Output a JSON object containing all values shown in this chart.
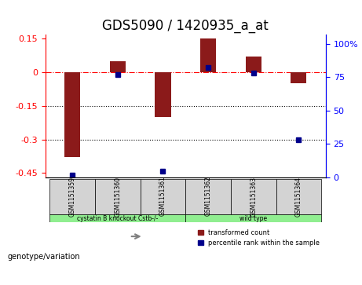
{
  "title": "GDS5090 / 1420935_a_at",
  "samples": [
    "GSM1151359",
    "GSM1151360",
    "GSM1151361",
    "GSM1151362",
    "GSM1151363",
    "GSM1151364"
  ],
  "red_values": [
    -0.38,
    0.05,
    -0.2,
    0.15,
    0.07,
    -0.05
  ],
  "blue_values": [
    2,
    77,
    5,
    82,
    78,
    28
  ],
  "ylim_left": [
    -0.47,
    0.17
  ],
  "ylim_right": [
    0,
    107
  ],
  "yticks_left": [
    0.15,
    0,
    -0.15,
    -0.3,
    -0.45
  ],
  "yticks_right": [
    100,
    75,
    50,
    25,
    0
  ],
  "hlines_dotted": [
    -0.15,
    -0.3
  ],
  "hline_dashdot": 0.0,
  "group1_label": "cystatin B knockout Cstb-/-",
  "group2_label": "wild type",
  "group1_indices": [
    0,
    1,
    2
  ],
  "group2_indices": [
    3,
    4,
    5
  ],
  "group1_color": "#90EE90",
  "group2_color": "#90EE90",
  "bar_color": "#8B1A1A",
  "dot_color": "#00008B",
  "legend_red_label": "transformed count",
  "legend_blue_label": "percentile rank within the sample",
  "genotype_label": "genotype/variation",
  "title_fontsize": 12,
  "tick_fontsize": 8
}
